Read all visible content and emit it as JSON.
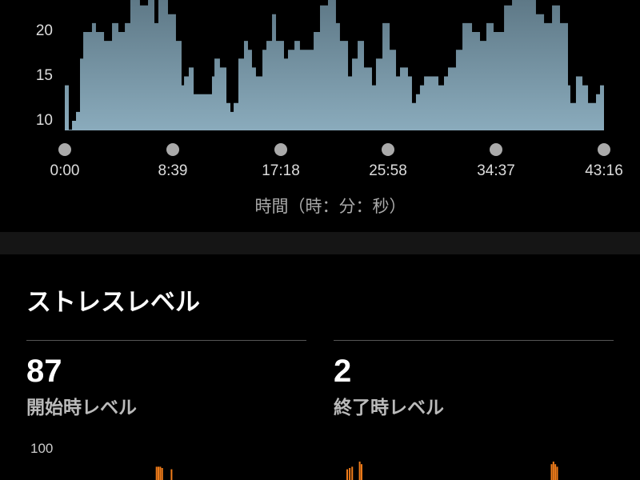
{
  "chart_data": [
    {
      "type": "area",
      "y_ticks": [
        "20",
        "15",
        "10"
      ],
      "ylim": [
        8.9,
        23.6
      ],
      "x_tick_labels": [
        "0:00",
        "8:39",
        "17:18",
        "25:58",
        "34:37",
        "43:16"
      ],
      "xlim_minutes": [
        0,
        43.27
      ],
      "xlabel": "時間（時：分：秒）",
      "fill_color": "#87a7b8",
      "points_minutes": [
        [
          0,
          14
        ],
        [
          0.32,
          9
        ],
        [
          0.58,
          10
        ],
        [
          0.9,
          11
        ],
        [
          1.22,
          17
        ],
        [
          1.48,
          20
        ],
        [
          2.18,
          21
        ],
        [
          2.5,
          20
        ],
        [
          3.15,
          19
        ],
        [
          3.79,
          21
        ],
        [
          4.3,
          20
        ],
        [
          4.82,
          21
        ],
        [
          5.26,
          24
        ],
        [
          6.03,
          23
        ],
        [
          6.68,
          24
        ],
        [
          7.19,
          21
        ],
        [
          7.51,
          24
        ],
        [
          8.28,
          22
        ],
        [
          8.92,
          19
        ],
        [
          9.37,
          14
        ],
        [
          9.57,
          15
        ],
        [
          9.95,
          16
        ],
        [
          10.34,
          13
        ],
        [
          11.49,
          13
        ],
        [
          11.81,
          15
        ],
        [
          12.01,
          17
        ],
        [
          12.45,
          16
        ],
        [
          12.97,
          12
        ],
        [
          13.29,
          11
        ],
        [
          13.55,
          12
        ],
        [
          13.93,
          17
        ],
        [
          14.38,
          19
        ],
        [
          14.7,
          18
        ],
        [
          15.02,
          16
        ],
        [
          15.34,
          15
        ],
        [
          15.86,
          18
        ],
        [
          16.18,
          19
        ],
        [
          16.63,
          22
        ],
        [
          16.95,
          19
        ],
        [
          17.59,
          17
        ],
        [
          17.91,
          18
        ],
        [
          18.43,
          19
        ],
        [
          18.87,
          18
        ],
        [
          19.97,
          20
        ],
        [
          20.48,
          23
        ],
        [
          21.12,
          24
        ],
        [
          21.76,
          21
        ],
        [
          22.08,
          19
        ],
        [
          22.73,
          15
        ],
        [
          23.05,
          17
        ],
        [
          23.5,
          19
        ],
        [
          24.01,
          16
        ],
        [
          24.65,
          14
        ],
        [
          24.97,
          17
        ],
        [
          25.49,
          21
        ],
        [
          26.07,
          18
        ],
        [
          26.58,
          15
        ],
        [
          26.9,
          16
        ],
        [
          27.54,
          15
        ],
        [
          27.86,
          12
        ],
        [
          28.18,
          13
        ],
        [
          28.5,
          14
        ],
        [
          28.83,
          15
        ],
        [
          29.98,
          14
        ],
        [
          30.43,
          15
        ],
        [
          30.75,
          16
        ],
        [
          31.39,
          18
        ],
        [
          31.91,
          21
        ],
        [
          32.68,
          20
        ],
        [
          33.32,
          19
        ],
        [
          33.83,
          21
        ],
        [
          34.41,
          20
        ],
        [
          35.25,
          23
        ],
        [
          35.89,
          24
        ],
        [
          37.17,
          24
        ],
        [
          37.81,
          22
        ],
        [
          38.46,
          21
        ],
        [
          39.1,
          23
        ],
        [
          39.74,
          21
        ],
        [
          40.38,
          14
        ],
        [
          40.57,
          12
        ],
        [
          41.02,
          15
        ],
        [
          41.54,
          14
        ],
        [
          41.99,
          12
        ],
        [
          42.63,
          13
        ],
        [
          42.95,
          14
        ],
        [
          43.27,
          13
        ]
      ]
    },
    {
      "type": "bar",
      "y_tick_top": "100",
      "bar_color": "#f07c1a",
      "bars_minutes": [
        [
          7.3,
          86
        ],
        [
          7.45,
          86
        ],
        [
          7.6,
          86
        ],
        [
          7.75,
          85
        ],
        [
          8.5,
          84
        ],
        [
          22.6,
          84
        ],
        [
          22.8,
          85
        ],
        [
          23.0,
          86
        ],
        [
          23.6,
          90
        ],
        [
          23.75,
          88
        ],
        [
          39.0,
          88
        ],
        [
          39.15,
          90
        ],
        [
          39.3,
          88
        ],
        [
          39.45,
          86
        ]
      ]
    }
  ],
  "stress": {
    "heading": "ストレスレベル",
    "start_value": "87",
    "start_label": "開始時レベル",
    "end_value": "2",
    "end_label": "終了時レベル"
  }
}
